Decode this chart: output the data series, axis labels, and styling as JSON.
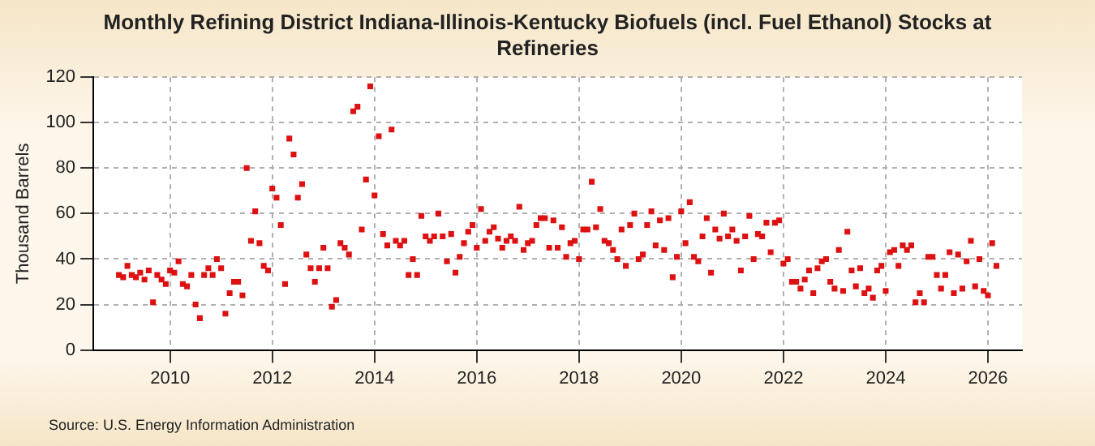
{
  "chart_data": {
    "type": "scatter",
    "title": "Monthly Refining District Indiana-Illinois-Kentucky Biofuels (incl. Fuel Ethanol) Stocks at Refineries",
    "ylabel": "Thousand Barrels",
    "annotations": [
      "Source: U.S. Energy Information Administration"
    ],
    "x": [
      "2009-01",
      "2009-02",
      "2009-03",
      "2009-04",
      "2009-05",
      "2009-06",
      "2009-07",
      "2009-08",
      "2009-09",
      "2009-10",
      "2009-11",
      "2009-12",
      "2010-01",
      "2010-02",
      "2010-03",
      "2010-04",
      "2010-05",
      "2010-06",
      "2010-07",
      "2010-08",
      "2010-09",
      "2010-10",
      "2010-11",
      "2010-12",
      "2011-01",
      "2011-02",
      "2011-03",
      "2011-04",
      "2011-05",
      "2011-06",
      "2011-07",
      "2011-08",
      "2011-09",
      "2011-10",
      "2011-11",
      "2011-12",
      "2012-01",
      "2012-02",
      "2012-03",
      "2012-04",
      "2012-05",
      "2012-06",
      "2012-07",
      "2012-08",
      "2012-09",
      "2012-10",
      "2012-11",
      "2012-12",
      "2013-01",
      "2013-02",
      "2013-03",
      "2013-04",
      "2013-05",
      "2013-06",
      "2013-07",
      "2013-08",
      "2013-09",
      "2013-10",
      "2013-11",
      "2013-12",
      "2014-01",
      "2014-02",
      "2014-03",
      "2014-04",
      "2014-05",
      "2014-06",
      "2014-07",
      "2014-08",
      "2014-09",
      "2014-10",
      "2014-11",
      "2014-12",
      "2015-01",
      "2015-02",
      "2015-03",
      "2015-04",
      "2015-05",
      "2015-06",
      "2015-07",
      "2015-08",
      "2015-09",
      "2015-10",
      "2015-11",
      "2015-12",
      "2016-01",
      "2016-02",
      "2016-03",
      "2016-04",
      "2016-05",
      "2016-06",
      "2016-07",
      "2016-08",
      "2016-09",
      "2016-10",
      "2016-11",
      "2016-12",
      "2017-01",
      "2017-02",
      "2017-03",
      "2017-04",
      "2017-05",
      "2017-06",
      "2017-07",
      "2017-08",
      "2017-09",
      "2017-10",
      "2017-11",
      "2017-12",
      "2018-01",
      "2018-02",
      "2018-03",
      "2018-04",
      "2018-05",
      "2018-06",
      "2018-07",
      "2018-08",
      "2018-09",
      "2018-10",
      "2018-11",
      "2018-12",
      "2019-01",
      "2019-02",
      "2019-03",
      "2019-04",
      "2019-05",
      "2019-06",
      "2019-07",
      "2019-08",
      "2019-09",
      "2019-10",
      "2019-11",
      "2019-12",
      "2020-01",
      "2020-02",
      "2020-03",
      "2020-04",
      "2020-05",
      "2020-06",
      "2020-07",
      "2020-08",
      "2020-09",
      "2020-10",
      "2020-11",
      "2020-12",
      "2021-01",
      "2021-02",
      "2021-03",
      "2021-04",
      "2021-05",
      "2021-06",
      "2021-07",
      "2021-08",
      "2021-09",
      "2021-10",
      "2021-11",
      "2021-12",
      "2022-01",
      "2022-02",
      "2022-03",
      "2022-04",
      "2022-05",
      "2022-06",
      "2022-07",
      "2022-08",
      "2022-09",
      "2022-10",
      "2022-11",
      "2022-12",
      "2023-01",
      "2023-02",
      "2023-03",
      "2023-04",
      "2023-05",
      "2023-06",
      "2023-07",
      "2023-08",
      "2023-09",
      "2023-10",
      "2023-11",
      "2023-12",
      "2024-01",
      "2024-02",
      "2024-03",
      "2024-04",
      "2024-05",
      "2024-06",
      "2024-07",
      "2024-08",
      "2024-09",
      "2024-10",
      "2024-11",
      "2024-12",
      "2025-01",
      "2025-02",
      "2025-03",
      "2025-04",
      "2025-05",
      "2025-06",
      "2025-07",
      "2025-08",
      "2025-09",
      "2025-10",
      "2025-11",
      "2025-12",
      "2026-01",
      "2026-02",
      "2026-03"
    ],
    "series": [
      {
        "color": "#dd1111",
        "values": [
          33,
          32,
          37,
          33,
          32,
          34,
          31,
          35,
          21,
          33,
          31,
          29,
          35,
          34,
          39,
          29,
          28,
          33,
          20,
          14,
          33,
          36,
          33,
          40,
          36,
          16,
          25,
          30,
          30,
          24,
          80,
          48,
          61,
          47,
          37,
          35,
          71,
          67,
          55,
          29,
          93,
          86,
          67,
          73,
          42,
          36,
          30,
          36,
          45,
          36,
          19,
          22,
          47,
          45,
          42,
          105,
          107,
          53,
          75,
          116,
          68,
          94,
          51,
          46,
          97,
          48,
          46,
          48,
          33,
          40,
          33,
          59,
          50,
          48,
          50,
          60,
          50,
          39,
          51,
          34,
          41,
          47,
          52,
          55,
          45,
          62,
          48,
          52,
          54,
          49,
          45,
          48,
          50,
          48,
          63,
          44,
          47,
          48,
          55,
          58,
          58,
          45,
          57,
          45,
          54,
          41,
          47,
          48,
          40,
          53,
          53,
          74,
          54,
          62,
          48,
          47,
          44,
          40,
          53,
          37,
          55,
          60,
          40,
          42,
          55,
          61,
          46,
          57,
          44,
          58,
          32,
          41,
          61,
          47,
          65,
          41,
          39,
          50,
          58,
          34,
          53,
          49,
          60,
          50,
          53,
          48,
          35,
          50,
          59,
          40,
          51,
          50,
          56,
          43,
          56,
          57,
          38,
          40,
          30,
          30,
          27,
          31,
          35,
          25,
          36,
          39,
          40,
          30,
          27,
          44,
          26,
          52,
          35,
          28,
          36,
          25,
          27,
          23,
          35,
          37,
          26,
          43,
          44,
          37,
          46,
          44,
          46,
          21,
          25,
          21,
          41,
          41,
          33,
          27,
          33,
          43,
          25,
          42,
          27,
          39,
          48,
          28,
          40,
          26,
          24,
          47,
          37
        ]
      }
    ],
    "xlim": [
      "2008-07",
      "2026-09"
    ],
    "xticks": [
      "2010",
      "2012",
      "2014",
      "2016",
      "2018",
      "2020",
      "2022",
      "2024",
      "2026"
    ],
    "ylim": [
      0,
      120
    ],
    "yticks": [
      0,
      20,
      40,
      60,
      80,
      100,
      120
    ],
    "grid": true,
    "marker": "square",
    "legend": false
  }
}
